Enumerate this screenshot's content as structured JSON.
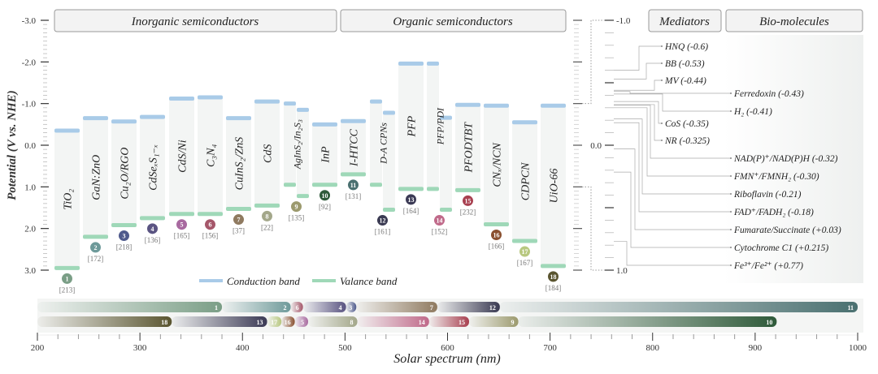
{
  "headers": {
    "inorganic": "Inorganic semiconductors",
    "organic": "Organic semiconductors",
    "mediators": "Mediators",
    "bio": "Bio-molecules"
  },
  "y_axis": {
    "label": "Potential (V vs. NHE)",
    "ticks": [
      "-3.0",
      "-2.0",
      "-1.0",
      "0.0",
      "1.0",
      "2.0",
      "3.0"
    ],
    "range": [
      -3.0,
      3.0
    ]
  },
  "right_axis": {
    "ticks": [
      "-1.0",
      "0.0",
      "1.0"
    ],
    "range": [
      -1.0,
      1.0
    ]
  },
  "legend": {
    "cb": "Conduction band",
    "vb": "Valance band",
    "cb_color": "#a9cbe8",
    "vb_color": "#9fd8b8"
  },
  "materials": [
    {
      "id": "1",
      "name": "TiO₂",
      "ref": "[213]",
      "color": "#7a9e86",
      "bands": [
        {
          "cb": -0.35,
          "vb": 2.95
        }
      ]
    },
    {
      "id": "2",
      "name": "GaN:ZnO",
      "ref": "[172]",
      "color": "#6e9a9a",
      "bands": [
        {
          "cb": -0.65,
          "vb": 2.2
        }
      ]
    },
    {
      "id": "3",
      "name": "Cu₂O/RGO",
      "ref": "[218]",
      "color": "#4f5a8c",
      "bands": [
        {
          "cb": -0.57,
          "vb": 1.92
        }
      ]
    },
    {
      "id": "4",
      "name": "CdSeₓS₁₋ₓ",
      "ref": "[136]",
      "color": "#5a5482",
      "bands": [
        {
          "cb": -0.68,
          "vb": 1.75
        }
      ]
    },
    {
      "id": "5",
      "name": "CdS/Ni",
      "ref": "[165]",
      "color": "#a86aa0",
      "bands": [
        {
          "cb": -1.12,
          "vb": 1.65
        }
      ]
    },
    {
      "id": "6",
      "name": "C₃N₄",
      "ref": "[156]",
      "color": "#a5576a",
      "bands": [
        {
          "cb": -1.15,
          "vb": 1.65
        }
      ]
    },
    {
      "id": "7",
      "name": "CuInS₂/ZnS",
      "ref": "[37]",
      "color": "#8f7a60",
      "bands": [
        {
          "cb": -0.65,
          "vb": 1.53
        }
      ]
    },
    {
      "id": "8",
      "name": "CdS",
      "ref": "[22]",
      "color": "#a3a78a",
      "bands": [
        {
          "cb": -1.05,
          "vb": 1.45
        }
      ]
    },
    {
      "id": "9",
      "name": "AgInS₂/In₂S₃",
      "ref": "[135]",
      "color": "#9c9a6e",
      "bands": [
        {
          "cb": -1.0,
          "vb": 0.95
        },
        {
          "cb": -0.85,
          "vb": 1.22
        }
      ]
    },
    {
      "id": "10",
      "name": "InP",
      "ref": "[92]",
      "color": "#2f5a3a",
      "bands": [
        {
          "cb": -0.5,
          "vb": 0.95
        }
      ]
    },
    {
      "id": "11",
      "name": "I-HTCC",
      "ref": "[131]",
      "color": "#4a7070",
      "bands": [
        {
          "cb": -0.58,
          "vb": 0.7
        }
      ]
    },
    {
      "id": "12",
      "name": "D-A CPNs",
      "ref": "[161]",
      "color": "#3a3a52",
      "bands": [
        {
          "cb": -1.05,
          "vb": 0.95
        },
        {
          "cb": -0.78,
          "vb": 1.55
        }
      ]
    },
    {
      "id": "13",
      "name": "PFP",
      "ref": "[164]",
      "color": "#3b3a55",
      "bands": [
        {
          "cb": -1.96,
          "vb": 1.05
        }
      ]
    },
    {
      "id": "14",
      "name": "PFP/PDI",
      "ref": "[152]",
      "color": "#c06a8a",
      "bands": [
        {
          "cb": -1.96,
          "vb": 1.05
        },
        {
          "cb": -0.66,
          "vb": 1.55
        }
      ]
    },
    {
      "id": "15",
      "name": "PFODTBT",
      "ref": "[232]",
      "color": "#a84050",
      "bands": [
        {
          "cb": -0.97,
          "vb": 1.08
        }
      ]
    },
    {
      "id": "16",
      "name": "CNₓ/NCN",
      "ref": "[166]",
      "color": "#8a5030",
      "bands": [
        {
          "cb": -0.95,
          "vb": 1.9
        }
      ]
    },
    {
      "id": "17",
      "name": "CDPCN",
      "ref": "[167]",
      "color": "#b8c880",
      "bands": [
        {
          "cb": -0.55,
          "vb": 2.3
        }
      ]
    },
    {
      "id": "18",
      "name": "UiO-66",
      "ref": "[184]",
      "color": "#5a5530",
      "bands": [
        {
          "cb": -0.95,
          "vb": 2.9
        }
      ]
    }
  ],
  "mediators": [
    {
      "label": "HNQ (-0.6)",
      "value": -0.6
    },
    {
      "label": "BB (-0.53)",
      "value": -0.53
    },
    {
      "label": "MV (-0.44)",
      "value": -0.44
    },
    {
      "label": "CoS (-0.35)",
      "value": -0.35
    },
    {
      "label": "NR (-0.325)",
      "value": -0.325
    }
  ],
  "biomolecules": [
    {
      "label": "Ferredoxin (-0.43)",
      "value": -0.43
    },
    {
      "label": "H₂ (-0.41)",
      "value": -0.41
    },
    {
      "label": "NAD(P)⁺/NAD(P)H (-0.32)",
      "value": -0.32
    },
    {
      "label": "FMN⁺/FMNH₂ (-0.30)",
      "value": -0.3
    },
    {
      "label": "Riboflavin (-0.21)",
      "value": -0.21
    },
    {
      "label": "FAD⁺/FADH₂ (-0.18)",
      "value": -0.18
    },
    {
      "label": "Fumarate/Succinate (+0.03)",
      "value": 0.03
    },
    {
      "label": "Cytochrome C1 (+0.215)",
      "value": 0.215
    },
    {
      "label": "Fe³⁺/Fe²⁺ (+0.77)",
      "value": 0.77
    }
  ],
  "spectrum": {
    "xlabel": "Solar spectrum (nm)",
    "xlim": [
      200,
      1000
    ],
    "ticks": [
      "200",
      "300",
      "400",
      "500",
      "600",
      "700",
      "800",
      "900",
      "1000"
    ],
    "row1": [
      {
        "id": "1",
        "end": 380
      },
      {
        "id": "2",
        "end": 447
      },
      {
        "id": "6",
        "end": 459
      },
      {
        "id": "4",
        "end": 501
      },
      {
        "id": "3",
        "end": 511
      },
      {
        "id": "7",
        "end": 590
      },
      {
        "id": "12",
        "end": 651
      },
      {
        "id": "11",
        "end": 1000
      }
    ],
    "row2": [
      {
        "id": "18",
        "end": 331
      },
      {
        "id": "13",
        "end": 424
      },
      {
        "id": "17",
        "end": 438
      },
      {
        "id": "16",
        "end": 451
      },
      {
        "id": "5",
        "end": 464
      },
      {
        "id": "8",
        "end": 512
      },
      {
        "id": "14",
        "end": 582
      },
      {
        "id": "15",
        "end": 621
      },
      {
        "id": "9",
        "end": 669
      },
      {
        "id": "10",
        "end": 921
      }
    ]
  }
}
